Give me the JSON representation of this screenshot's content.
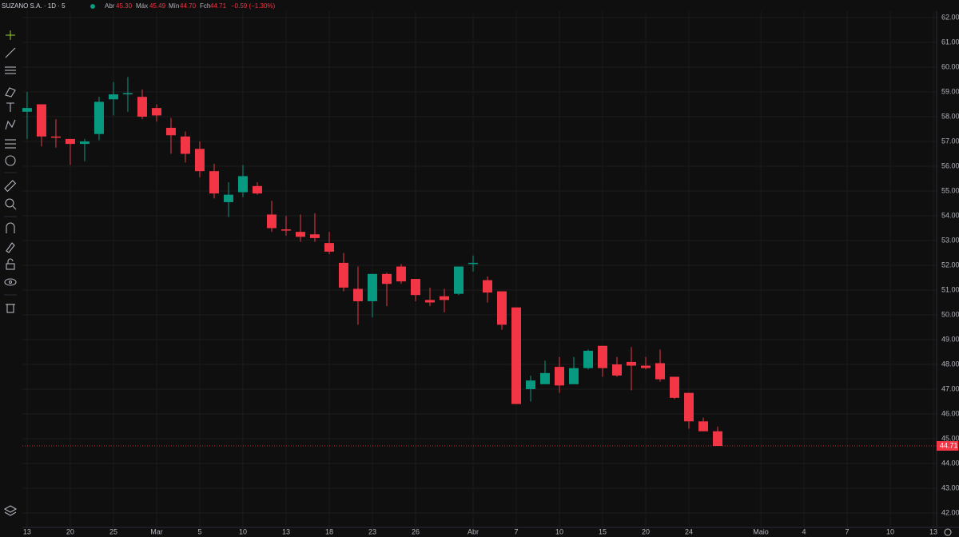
{
  "chart_data": {
    "type": "candlestick",
    "title": "SUZANO S.A. · 1D · 5",
    "header": {
      "open_label": "Abr",
      "open": "45.30",
      "high_label": "Máx",
      "high": "45.49",
      "low_label": "Mín",
      "low": "44.70",
      "close_label": "Fch",
      "close": "44.71",
      "change": "−0.59 (−1.30%)"
    },
    "up_color": "#089981",
    "down_color": "#f23645",
    "open": [
      58.2,
      58.5,
      57.2,
      57.1,
      56.9,
      57.3,
      58.7,
      58.9,
      58.8,
      58.35,
      57.55,
      57.2,
      56.7,
      55.8,
      54.55,
      54.95,
      55.2,
      54.05,
      53.45,
      53.35,
      53.25,
      52.9,
      52.1,
      51.05,
      50.55,
      51.65,
      51.95,
      51.45,
      50.6,
      50.75,
      50.85,
      52.05,
      51.4,
      50.95,
      50.3,
      47.0,
      47.2,
      47.9,
      47.2,
      47.85,
      48.75,
      48.0,
      48.1,
      47.95,
      48.05,
      47.5,
      46.85,
      45.7,
      45.3
    ],
    "high": [
      59.0,
      58.5,
      57.9,
      57.1,
      57.1,
      58.8,
      59.4,
      59.6,
      59.1,
      58.5,
      57.95,
      57.4,
      57.0,
      56.1,
      55.35,
      56.05,
      55.35,
      54.6,
      54.0,
      54.05,
      54.1,
      53.35,
      52.5,
      51.95,
      51.65,
      51.7,
      52.05,
      51.45,
      51.1,
      51.05,
      51.95,
      52.4,
      51.55,
      50.95,
      50.3,
      47.55,
      48.15,
      48.3,
      48.3,
      48.6,
      48.75,
      48.3,
      48.7,
      48.3,
      48.6,
      47.5,
      46.85,
      45.85,
      45.49
    ],
    "low": [
      57.1,
      56.8,
      56.75,
      56.05,
      56.2,
      57.05,
      58.05,
      58.2,
      57.9,
      57.8,
      56.5,
      56.15,
      55.55,
      54.7,
      53.95,
      54.75,
      54.85,
      53.35,
      53.2,
      52.95,
      52.95,
      52.45,
      50.95,
      49.6,
      49.9,
      50.35,
      51.25,
      50.55,
      50.35,
      50.1,
      50.8,
      51.75,
      50.5,
      49.4,
      46.4,
      46.5,
      47.2,
      46.85,
      47.2,
      47.8,
      47.5,
      47.5,
      46.95,
      47.8,
      47.3,
      46.6,
      45.4,
      45.3,
      44.7
    ],
    "close": [
      58.35,
      57.2,
      57.15,
      56.9,
      57.0,
      58.6,
      58.9,
      58.95,
      58.0,
      58.05,
      57.25,
      56.5,
      55.8,
      54.9,
      54.85,
      55.6,
      54.9,
      53.5,
      53.4,
      53.15,
      53.1,
      52.55,
      51.1,
      50.55,
      51.65,
      51.25,
      51.35,
      50.8,
      50.5,
      50.6,
      51.95,
      52.1,
      50.9,
      49.6,
      46.4,
      47.35,
      47.65,
      47.15,
      47.85,
      48.55,
      47.85,
      47.55,
      47.95,
      47.85,
      47.4,
      46.65,
      45.7,
      45.3,
      44.71
    ],
    "xlim": [
      -0.33,
      63.22
    ],
    "xticks": [
      {
        "value": 0,
        "label": "13"
      },
      {
        "value": 3,
        "label": "20"
      },
      {
        "value": 6,
        "label": "25"
      },
      {
        "value": 9,
        "label": "Mar"
      },
      {
        "value": 12,
        "label": "5"
      },
      {
        "value": 15,
        "label": "10"
      },
      {
        "value": 18,
        "label": "13"
      },
      {
        "value": 21,
        "label": "18"
      },
      {
        "value": 24,
        "label": "23"
      },
      {
        "value": 27,
        "label": "26"
      },
      {
        "value": 31,
        "label": "Abr"
      },
      {
        "value": 34,
        "label": "7"
      },
      {
        "value": 37,
        "label": "10"
      },
      {
        "value": 40,
        "label": "15"
      },
      {
        "value": 43,
        "label": "20"
      },
      {
        "value": 46,
        "label": "24"
      },
      {
        "value": 51,
        "label": "Maio"
      },
      {
        "value": 54,
        "label": "4"
      },
      {
        "value": 57,
        "label": "7"
      },
      {
        "value": 60,
        "label": "10"
      },
      {
        "value": 63,
        "label": "13"
      }
    ],
    "ylim": [
      41.419,
      62.258
    ],
    "yticks": [
      {
        "value": 42,
        "label": "42.00"
      },
      {
        "value": 43,
        "label": "43.00"
      },
      {
        "value": 44,
        "label": "44.00"
      },
      {
        "value": 45,
        "label": "45.00"
      },
      {
        "value": 46,
        "label": "46.00"
      },
      {
        "value": 47,
        "label": "47.00"
      },
      {
        "value": 48,
        "label": "48.00"
      },
      {
        "value": 49,
        "label": "49.00"
      },
      {
        "value": 50,
        "label": "50.00"
      },
      {
        "value": 51,
        "label": "51.00"
      },
      {
        "value": 52,
        "label": "52.00"
      },
      {
        "value": 53,
        "label": "53.00"
      },
      {
        "value": 54,
        "label": "54.00"
      },
      {
        "value": 55,
        "label": "55.00"
      },
      {
        "value": 56,
        "label": "56.00"
      },
      {
        "value": 57,
        "label": "57.00"
      },
      {
        "value": 58,
        "label": "58.00"
      },
      {
        "value": 59,
        "label": "59.00"
      },
      {
        "value": 60,
        "label": "60.00"
      },
      {
        "value": 61,
        "label": "61.00"
      },
      {
        "value": 62,
        "label": "62.00"
      }
    ],
    "grid": true,
    "last_price": {
      "value": 44.71,
      "label": "44.71"
    }
  }
}
